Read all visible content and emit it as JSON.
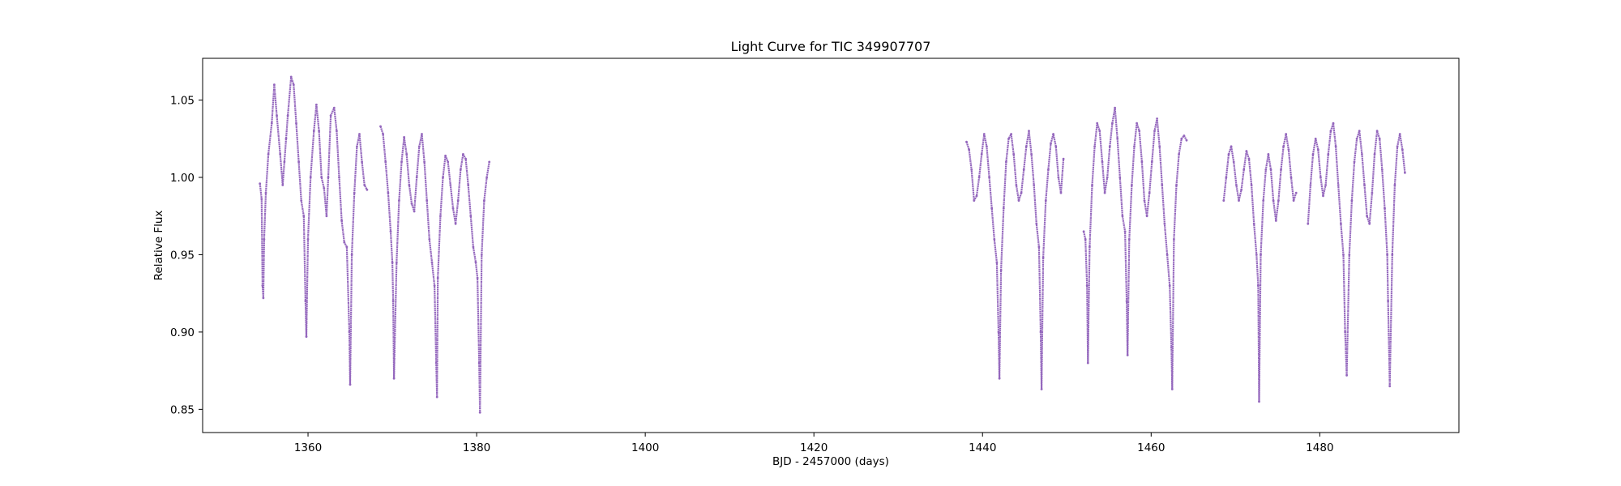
{
  "chart_data": {
    "type": "scatter",
    "title": "Light Curve for TIC 349907707",
    "xlabel": "BJD - 2457000 (days)",
    "ylabel": "Relative Flux",
    "xlim": [
      1347.5,
      1496.5
    ],
    "ylim": [
      0.835,
      1.077
    ],
    "xticks": [
      1360,
      1380,
      1400,
      1420,
      1440,
      1460,
      1480
    ],
    "yticks": [
      0.85,
      0.9,
      0.95,
      1.0,
      1.05
    ],
    "xtick_labels": [
      "1360",
      "1380",
      "1400",
      "1420",
      "1440",
      "1460",
      "1480"
    ],
    "ytick_labels": [
      "0.85",
      "0.90",
      "0.95",
      "1.00",
      "1.05"
    ],
    "grid": false,
    "marker_color": "#9467bd",
    "series": [
      {
        "segments": [
          {
            "x": [
              1354.3,
              1354.5,
              1354.6,
              1354.7,
              1354.8,
              1355.0,
              1355.3,
              1355.7,
              1356.0,
              1356.3,
              1356.7,
              1357.0,
              1357.2,
              1357.4,
              1357.6,
              1358.0,
              1358.3,
              1358.6,
              1358.9,
              1359.2,
              1359.5,
              1359.7,
              1359.8,
              1360.0,
              1360.3,
              1360.7,
              1361.0,
              1361.3,
              1361.6,
              1361.9,
              1362.2,
              1362.4,
              1362.7,
              1363.1,
              1363.4,
              1363.7,
              1364.0,
              1364.3,
              1364.6,
              1364.9,
              1365.0,
              1365.2,
              1365.5,
              1365.8,
              1366.1,
              1366.4,
              1366.7,
              1367.0
            ],
            "y": [
              0.996,
              0.986,
              0.93,
              0.922,
              0.96,
              0.99,
              1.015,
              1.035,
              1.06,
              1.04,
              1.015,
              0.995,
              1.01,
              1.025,
              1.04,
              1.065,
              1.06,
              1.035,
              1.01,
              0.985,
              0.975,
              0.92,
              0.897,
              0.96,
              1.0,
              1.03,
              1.047,
              1.03,
              1.0,
              0.993,
              0.975,
              1.0,
              1.04,
              1.045,
              1.03,
              1.0,
              0.972,
              0.958,
              0.955,
              0.9,
              0.866,
              0.95,
              0.99,
              1.02,
              1.028,
              1.01,
              0.995,
              0.992
            ]
          },
          {
            "x": [
              1368.6,
              1368.9,
              1369.2,
              1369.5,
              1369.8,
              1370.0,
              1370.1,
              1370.2,
              1370.5,
              1370.8,
              1371.1,
              1371.4,
              1371.7,
              1372.0,
              1372.3,
              1372.6,
              1372.9,
              1373.2,
              1373.5,
              1373.8,
              1374.1,
              1374.4,
              1374.7,
              1375.0,
              1375.2,
              1375.3,
              1375.4,
              1375.7,
              1376.0,
              1376.3,
              1376.6,
              1376.9,
              1377.2,
              1377.5,
              1377.8,
              1378.1,
              1378.4,
              1378.7,
              1379.0,
              1379.3,
              1379.6,
              1379.9,
              1380.1,
              1380.3,
              1380.4,
              1380.6,
              1380.9,
              1381.2,
              1381.5
            ],
            "y": [
              1.033,
              1.028,
              1.01,
              0.99,
              0.965,
              0.945,
              0.92,
              0.87,
              0.945,
              0.985,
              1.01,
              1.026,
              1.015,
              0.995,
              0.983,
              0.978,
              1.0,
              1.02,
              1.028,
              1.01,
              0.985,
              0.96,
              0.945,
              0.93,
              0.88,
              0.858,
              0.935,
              0.975,
              1.0,
              1.014,
              1.01,
              0.995,
              0.98,
              0.97,
              0.985,
              1.005,
              1.015,
              1.012,
              0.995,
              0.975,
              0.955,
              0.945,
              0.935,
              0.88,
              0.848,
              0.95,
              0.985,
              1.0,
              1.01
            ]
          },
          {
            "x": [
              1438.1,
              1438.4,
              1438.7,
              1439.0,
              1439.3,
              1439.6,
              1439.9,
              1440.2,
              1440.5,
              1440.8,
              1441.1,
              1441.4,
              1441.7,
              1441.9,
              1442.0,
              1442.2,
              1442.5,
              1442.8,
              1443.1,
              1443.4,
              1443.7,
              1444.0,
              1444.3,
              1444.6,
              1444.9,
              1445.2,
              1445.5,
              1445.8,
              1446.1,
              1446.4,
              1446.7,
              1446.9,
              1447.0,
              1447.2,
              1447.5,
              1447.8,
              1448.1,
              1448.4,
              1448.7,
              1449.0,
              1449.3,
              1449.6
            ],
            "y": [
              1.023,
              1.018,
              1.005,
              0.985,
              0.988,
              1.0,
              1.015,
              1.028,
              1.02,
              1.0,
              0.98,
              0.96,
              0.945,
              0.9,
              0.87,
              0.94,
              0.98,
              1.01,
              1.025,
              1.028,
              1.015,
              0.995,
              0.985,
              0.99,
              1.005,
              1.02,
              1.03,
              1.015,
              0.995,
              0.97,
              0.955,
              0.9,
              0.863,
              0.948,
              0.985,
              1.005,
              1.022,
              1.028,
              1.02,
              1.0,
              0.99,
              1.012
            ]
          },
          {
            "x": [
              1452.0,
              1452.2,
              1452.4,
              1452.5,
              1452.7,
              1453.0,
              1453.3,
              1453.6,
              1453.9,
              1454.2,
              1454.5,
              1454.8,
              1455.1,
              1455.4,
              1455.7,
              1456.0,
              1456.3,
              1456.6,
              1456.9,
              1457.1,
              1457.2,
              1457.4,
              1457.7,
              1458.0,
              1458.3,
              1458.6,
              1458.9,
              1459.2,
              1459.5,
              1459.8,
              1460.1,
              1460.4,
              1460.7,
              1461.0,
              1461.3,
              1461.6,
              1461.9,
              1462.2,
              1462.4,
              1462.5,
              1462.7,
              1463.0,
              1463.3,
              1463.6,
              1463.9,
              1464.2
            ],
            "y": [
              0.965,
              0.96,
              0.93,
              0.88,
              0.955,
              0.995,
              1.02,
              1.035,
              1.03,
              1.01,
              0.99,
              1.0,
              1.02,
              1.035,
              1.045,
              1.025,
              1.0,
              0.975,
              0.965,
              0.92,
              0.885,
              0.96,
              0.995,
              1.02,
              1.035,
              1.03,
              1.01,
              0.985,
              0.975,
              0.99,
              1.01,
              1.03,
              1.038,
              1.02,
              0.995,
              0.97,
              0.95,
              0.93,
              0.89,
              0.863,
              0.96,
              0.995,
              1.015,
              1.025,
              1.027,
              1.024
            ]
          },
          {
            "x": [
              1468.6,
              1468.9,
              1469.2,
              1469.5,
              1469.8,
              1470.1,
              1470.4,
              1470.7,
              1471.0,
              1471.3,
              1471.6,
              1471.9,
              1472.2,
              1472.5,
              1472.7,
              1472.8,
              1473.0,
              1473.3,
              1473.6,
              1473.9,
              1474.2,
              1474.5,
              1474.8,
              1475.1,
              1475.4,
              1475.7,
              1476.0,
              1476.3,
              1476.6,
              1476.9,
              1477.2
            ],
            "y": [
              0.985,
              1.0,
              1.015,
              1.02,
              1.01,
              0.995,
              0.985,
              0.992,
              1.005,
              1.017,
              1.012,
              0.995,
              0.97,
              0.95,
              0.93,
              0.855,
              0.95,
              0.985,
              1.005,
              1.015,
              1.005,
              0.985,
              0.972,
              0.985,
              1.005,
              1.02,
              1.028,
              1.018,
              1.0,
              0.985,
              0.99
            ]
          },
          {
            "x": [
              1478.6,
              1478.9,
              1479.2,
              1479.5,
              1479.8,
              1480.1,
              1480.4,
              1480.7,
              1481.0,
              1481.3,
              1481.6,
              1481.9,
              1482.2,
              1482.5,
              1482.8,
              1483.0,
              1483.2,
              1483.5,
              1483.8,
              1484.1,
              1484.4,
              1484.7,
              1485.0,
              1485.3,
              1485.6,
              1485.9,
              1486.2,
              1486.5,
              1486.8,
              1487.1,
              1487.4,
              1487.7,
              1488.0,
              1488.1,
              1488.3,
              1488.6,
              1488.9,
              1489.2,
              1489.5,
              1489.8,
              1490.1
            ],
            "y": [
              0.97,
              0.995,
              1.015,
              1.025,
              1.018,
              1.0,
              0.988,
              0.995,
              1.015,
              1.03,
              1.035,
              1.02,
              0.995,
              0.97,
              0.95,
              0.9,
              0.872,
              0.95,
              0.985,
              1.01,
              1.025,
              1.03,
              1.015,
              0.995,
              0.975,
              0.97,
              0.99,
              1.015,
              1.03,
              1.025,
              1.005,
              0.98,
              0.95,
              0.92,
              0.865,
              0.95,
              0.995,
              1.02,
              1.028,
              1.018,
              1.003
            ]
          }
        ]
      }
    ]
  }
}
